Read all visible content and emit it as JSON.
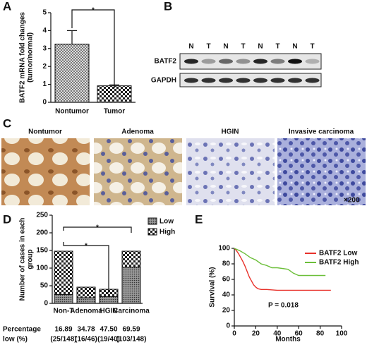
{
  "panel_labels": [
    "A",
    "B",
    "C",
    "D",
    "E"
  ],
  "blot": {
    "lanes": [
      "N",
      "T",
      "N",
      "T",
      "N",
      "T",
      "N",
      "T"
    ],
    "rows": [
      "BATF2",
      "GAPDH"
    ]
  },
  "histology": {
    "captions": [
      "Nontumor",
      "Adenoma",
      "HGIN",
      "Invasive carcinoma"
    ],
    "magnification": "×200"
  },
  "chart_data": [
    {
      "type": "bar",
      "y_label": [
        "BATF2 mRNA fold changes",
        "(tumor/normal)"
      ],
      "categories": [
        "Nontumor",
        "Tumor"
      ],
      "values": [
        3.25,
        0.92
      ],
      "errors": [
        0.75,
        0.05
      ],
      "ylim": [
        0,
        5
      ],
      "yticks": [
        0,
        1,
        2,
        3,
        4,
        5
      ],
      "significance": "*"
    },
    {
      "type": "stacked_bar",
      "y_label": [
        "Number of cases in each",
        "group"
      ],
      "categories": [
        "Non-T",
        "Adenoma",
        "HGIN",
        "Carcinoma"
      ],
      "series": [
        {
          "name": "Low",
          "color": "#8a8a8a",
          "values": [
            25,
            16,
            19,
            103
          ]
        },
        {
          "name": "High",
          "color": "#ffffff",
          "values": [
            123,
            30,
            21,
            45
          ]
        }
      ],
      "ylim": [
        0,
        250
      ],
      "yticks": [
        0,
        50,
        100,
        150,
        200,
        250
      ],
      "significance": [
        "*",
        "*"
      ],
      "percentage_row": {
        "label": [
          "Percentage",
          "low (%)"
        ],
        "values": [
          "16.89",
          "34.78",
          "47.50",
          "69.59"
        ],
        "counts": [
          "(25/148)",
          "(16/46)",
          "(19/40)",
          "(103/148)"
        ]
      }
    },
    {
      "type": "line",
      "x_label": "Months",
      "y_label": "Survival (%)",
      "annotation": "P = 0.018",
      "xlim": [
        0,
        100
      ],
      "xticks": [
        0,
        20,
        40,
        60,
        80,
        100
      ],
      "ylim": [
        0,
        100
      ],
      "yticks": [
        0,
        20,
        40,
        60,
        80,
        100
      ],
      "series": [
        {
          "name": "BATF2 Low",
          "color": "#e8322b",
          "x": [
            0,
            2,
            4,
            6,
            8,
            10,
            12,
            14,
            16,
            18,
            20,
            22,
            25,
            30,
            40,
            90
          ],
          "values": [
            100,
            97,
            93,
            88,
            83,
            77,
            70,
            63,
            58,
            53,
            50,
            48,
            47,
            47,
            46,
            46
          ]
        },
        {
          "name": "BATF2 High",
          "color": "#6cbf3a",
          "x": [
            0,
            5,
            10,
            15,
            20,
            25,
            30,
            35,
            40,
            50,
            55,
            60,
            70,
            85
          ],
          "values": [
            100,
            97,
            93,
            88,
            85,
            80,
            78,
            75,
            75,
            73,
            68,
            65,
            65,
            65
          ]
        }
      ]
    }
  ]
}
